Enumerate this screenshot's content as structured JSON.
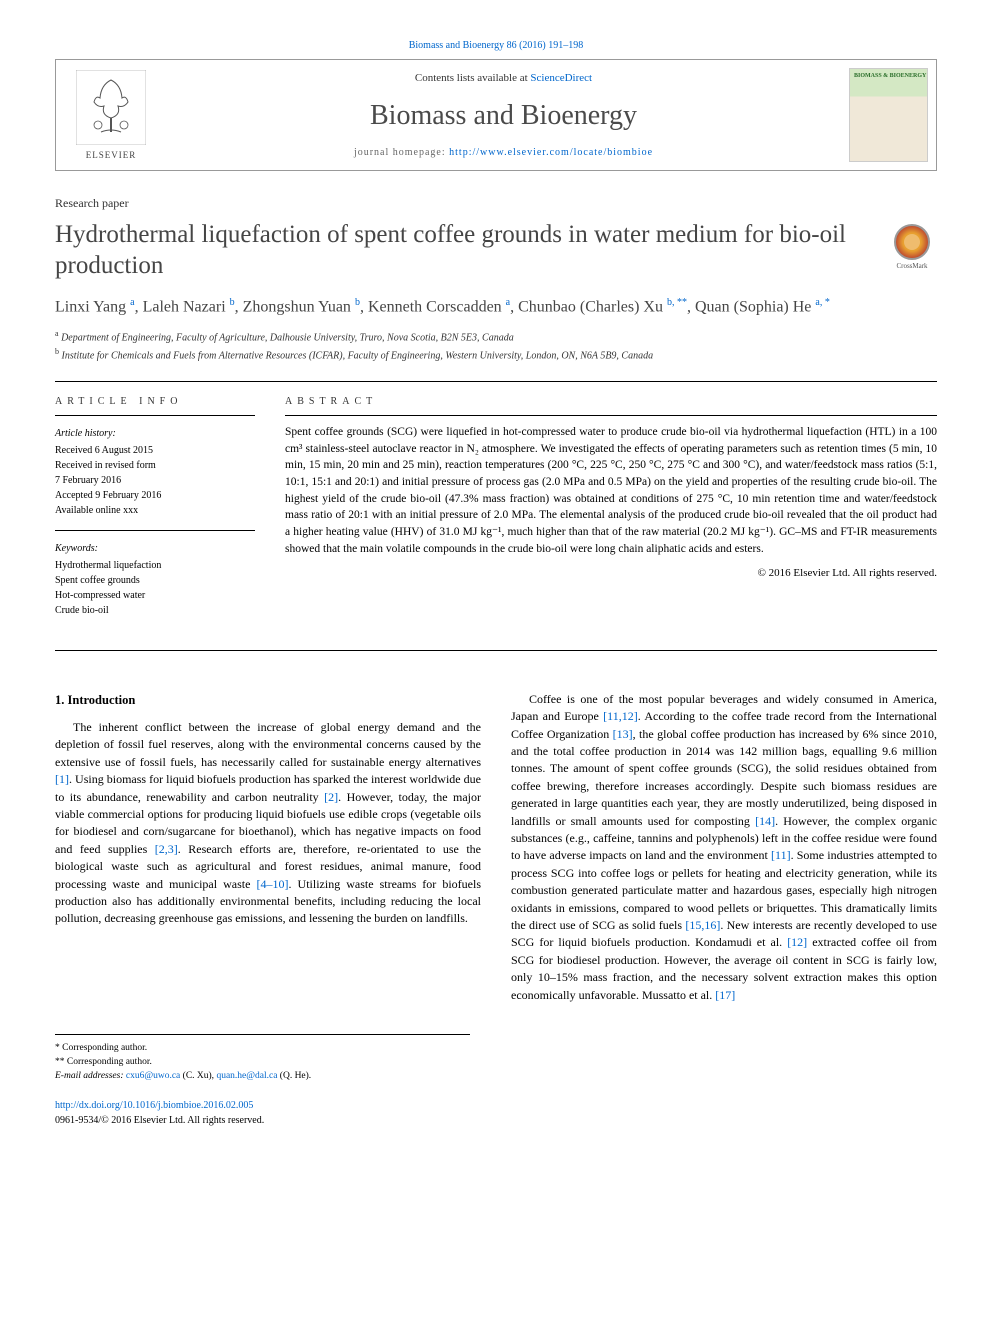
{
  "citation": "Biomass and Bioenergy 86 (2016) 191–198",
  "header": {
    "contents_prefix": "Contents lists available at ",
    "contents_link": "ScienceDirect",
    "journal": "Biomass and Bioenergy",
    "homepage_prefix": "journal homepage: ",
    "homepage_url": "http://www.elsevier.com/locate/biombioe",
    "publisher_label": "ELSEVIER",
    "cover_title": "BIOMASS & BIOENERGY"
  },
  "paper_type": "Research paper",
  "title": "Hydrothermal liquefaction of spent coffee grounds in water medium for bio-oil production",
  "crossmark_label": "CrossMark",
  "authors_html": "Linxi Yang <sup>a</sup>, Laleh Nazari <sup>b</sup>, Zhongshun Yuan <sup>b</sup>, Kenneth Corscadden <sup>a</sup>, Chunbao (Charles) Xu <sup>b, **</sup>, Quan (Sophia) He <sup>a, *</sup>",
  "affiliations": {
    "a": "Department of Engineering, Faculty of Agriculture, Dalhousie University, Truro, Nova Scotia, B2N 5E3, Canada",
    "b": "Institute for Chemicals and Fuels from Alternative Resources (ICFAR), Faculty of Engineering, Western University, London, ON, N6A 5B9, Canada"
  },
  "info": {
    "heading": "ARTICLE INFO",
    "history_label": "Article history:",
    "history": [
      "Received 6 August 2015",
      "Received in revised form",
      "7 February 2016",
      "Accepted 9 February 2016",
      "Available online xxx"
    ],
    "keywords_label": "Keywords:",
    "keywords": [
      "Hydrothermal liquefaction",
      "Spent coffee grounds",
      "Hot-compressed water",
      "Crude bio-oil"
    ]
  },
  "abstract": {
    "heading": "ABSTRACT",
    "text": "Spent coffee grounds (SCG) were liquefied in hot-compressed water to produce crude bio-oil via hydrothermal liquefaction (HTL) in a 100 cm³ stainless-steel autoclave reactor in N₂ atmosphere. We investigated the effects of operating parameters such as retention times (5 min, 10 min, 15 min, 20 min and 25 min), reaction temperatures (200 °C, 225 °C, 250 °C, 275 °C and 300 °C), and water/feedstock mass ratios (5:1, 10:1, 15:1 and 20:1) and initial pressure of process gas (2.0 MPa and 0.5 MPa) on the yield and properties of the resulting crude bio-oil. The highest yield of the crude bio-oil (47.3% mass fraction) was obtained at conditions of 275 °C, 10 min retention time and water/feedstock mass ratio of 20:1 with an initial pressure of 2.0 MPa. The elemental analysis of the produced crude bio-oil revealed that the oil product had a higher heating value (HHV) of 31.0 MJ kg⁻¹, much higher than that of the raw material (20.2 MJ kg⁻¹). GC–MS and FT-IR measurements showed that the main volatile compounds in the crude bio-oil were long chain aliphatic acids and esters.",
    "copyright": "© 2016 Elsevier Ltd. All rights reserved."
  },
  "section1": {
    "heading": "1. Introduction",
    "para1": "The inherent conflict between the increase of global energy demand and the depletion of fossil fuel reserves, along with the environmental concerns caused by the extensive use of fossil fuels, has necessarily called for sustainable energy alternatives [1]. Using biomass for liquid biofuels production has sparked the interest worldwide due to its abundance, renewability and carbon neutrality [2]. However, today, the major viable commercial options for producing liquid biofuels use edible crops (vegetable oils for biodiesel and corn/sugarcane for bioethanol), which has negative impacts on food and feed supplies [2,3]. Research efforts are, therefore, re-orientated to use the biological waste such as agricultural and forest residues, animal manure, food processing waste and municipal waste [4–10]. Utilizing waste streams for biofuels production also has additionally environmental benefits, including reducing the local pollution, decreasing greenhouse gas emissions, and lessening the burden on landfills.",
    "para2": "Coffee is one of the most popular beverages and widely consumed in America, Japan and Europe [11,12]. According to the coffee trade record from the International Coffee Organization [13], the global coffee production has increased by 6% since 2010, and the total coffee production in 2014 was 142 million bags, equalling 9.6 million tonnes. The amount of spent coffee grounds (SCG), the solid residues obtained from coffee brewing, therefore increases accordingly. Despite such biomass residues are generated in large quantities each year, they are mostly underutilized, being disposed in landfills or small amounts used for composting [14]. However, the complex organic substances (e.g., caffeine, tannins and polyphenols) left in the coffee residue were found to have adverse impacts on land and the environment [11]. Some industries attempted to process SCG into coffee logs or pellets for heating and electricity generation, while its combustion generated particulate matter and hazardous gases, especially high nitrogen oxidants in emissions, compared to wood pellets or briquettes. This dramatically limits the direct use of SCG as solid fuels [15,16]. New interests are recently developed to use SCG for liquid biofuels production. Kondamudi et al. [12] extracted coffee oil from SCG for biodiesel production. However, the average oil content in SCG is fairly low, only 10–15% mass fraction, and the necessary solvent extraction makes this option economically unfavorable. Mussatto et al. [17]"
  },
  "footnotes": {
    "c1": "* Corresponding author.",
    "c2": "** Corresponding author.",
    "email_label": "E-mail addresses:",
    "email1": "cxu6@uwo.ca",
    "email1_name": "(C. Xu),",
    "email2": "quan.he@dal.ca",
    "email2_name": "(Q. He)."
  },
  "bottom": {
    "doi": "http://dx.doi.org/10.1016/j.biombioe.2016.02.005",
    "issn_copy": "0961-9534/© 2016 Elsevier Ltd. All rights reserved."
  },
  "refs": {
    "r1": "[1]",
    "r2": "[2]",
    "r23": "[2,3]",
    "r410": "[4–10]",
    "r1112": "[11,12]",
    "r13": "[13]",
    "r14": "[14]",
    "r11": "[11]",
    "r1516": "[15,16]",
    "r12": "[12]",
    "r17": "[17]"
  },
  "colors": {
    "link": "#0066cc",
    "heading_gray": "#454545",
    "border": "#000000",
    "cover_green": "#d4e8c4"
  }
}
